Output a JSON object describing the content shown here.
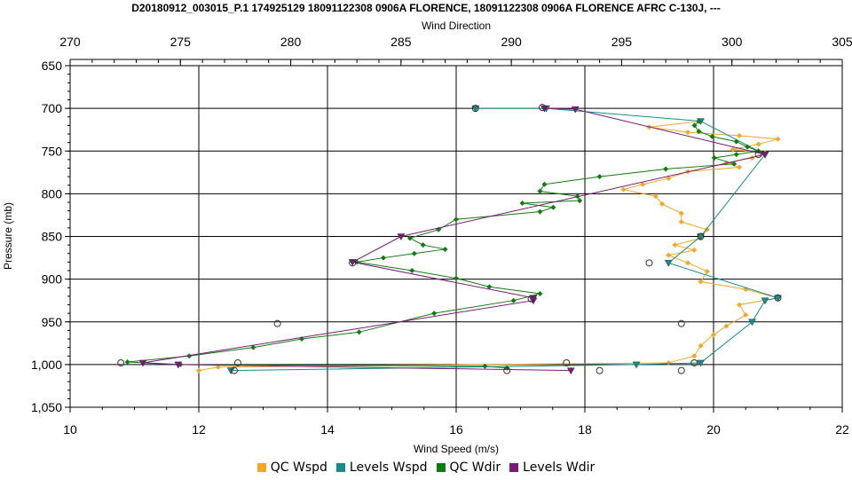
{
  "chart_data": {
    "type": "line",
    "title": "D20180912_003015_P.1 174925129 18091122308 0906A FLORENCE, 18091122308 0906A FLORENCE AFRC C-130J, ---",
    "xlabel": "Wind Speed (m/s)",
    "x2label": "Wind Direction",
    "ylabel": "Pressure (mb)",
    "xlim": [
      10,
      22
    ],
    "x2lim": [
      270,
      305
    ],
    "ylim": [
      650,
      1050
    ],
    "y_inverted": true,
    "grid": true,
    "legend_position": "bottom",
    "x_ticks": [
      "10",
      "12",
      "14",
      "16",
      "18",
      "20",
      "22"
    ],
    "x2_ticks": [
      "270",
      "275",
      "280",
      "285",
      "290",
      "295",
      "300",
      "305"
    ],
    "y_ticks": [
      "650",
      "700",
      "750",
      "800",
      "850",
      "900",
      "950",
      "1,000",
      "1,050"
    ],
    "legend": [
      "QC Wspd",
      "Levels Wspd",
      "QC Wdir",
      "Levels Wdir"
    ],
    "series": [
      {
        "name": "QC Wspd",
        "axis": "x",
        "color": "#f5a623",
        "marker": "diamond",
        "points": [
          [
            19.8,
            715
          ],
          [
            19.0,
            722
          ],
          [
            19.6,
            728
          ],
          [
            20.4,
            732
          ],
          [
            21.0,
            736
          ],
          [
            20.7,
            742
          ],
          [
            20.3,
            748
          ],
          [
            20.8,
            752
          ],
          [
            20.6,
            758
          ],
          [
            20.2,
            764
          ],
          [
            20.4,
            769
          ],
          [
            19.6,
            774
          ],
          [
            19.3,
            782
          ],
          [
            18.9,
            789
          ],
          [
            18.6,
            795
          ],
          [
            19.1,
            803
          ],
          [
            19.2,
            812
          ],
          [
            19.5,
            823
          ],
          [
            19.5,
            833
          ],
          [
            19.9,
            842
          ],
          [
            19.8,
            852
          ],
          [
            19.4,
            860
          ],
          [
            19.7,
            866
          ],
          [
            19.3,
            872
          ],
          [
            19.6,
            881
          ],
          [
            19.9,
            891
          ],
          [
            19.8,
            903
          ],
          [
            20.5,
            912
          ],
          [
            21.0,
            922
          ],
          [
            20.4,
            930
          ],
          [
            20.5,
            942
          ],
          [
            20.2,
            955
          ],
          [
            20.0,
            965
          ],
          [
            19.8,
            978
          ],
          [
            19.7,
            990
          ],
          [
            19.3,
            998
          ],
          [
            12.3,
            1003
          ],
          [
            12.0,
            1007
          ]
        ]
      },
      {
        "name": "Levels Wspd",
        "axis": "x",
        "color": "#138e8c",
        "marker": "triangle",
        "points": [
          [
            16.3,
            700
          ],
          [
            17.4,
            700
          ],
          [
            19.8,
            715
          ],
          [
            20.8,
            754
          ],
          [
            19.8,
            850
          ],
          [
            19.3,
            881
          ],
          [
            21.0,
            922
          ],
          [
            20.8,
            925
          ],
          [
            20.6,
            950
          ],
          [
            19.8,
            998
          ],
          [
            18.8,
            1000
          ],
          [
            12.5,
            1007
          ]
        ]
      },
      {
        "name": "QC Wdir",
        "axis": "x2",
        "color": "#0e7d0e",
        "marker": "diamond",
        "points": [
          [
            298.5,
            715
          ],
          [
            298.3,
            720
          ],
          [
            298.5,
            727
          ],
          [
            299.1,
            733
          ],
          [
            300.2,
            739
          ],
          [
            300.7,
            745
          ],
          [
            301.2,
            750
          ],
          [
            300.2,
            754
          ],
          [
            299.2,
            758
          ],
          [
            300.1,
            765
          ],
          [
            297.0,
            771
          ],
          [
            294.0,
            780
          ],
          [
            291.5,
            789
          ],
          [
            291.3,
            797
          ],
          [
            293.0,
            803
          ],
          [
            293.1,
            808
          ],
          [
            290.5,
            811
          ],
          [
            291.9,
            816
          ],
          [
            291.3,
            821
          ],
          [
            287.5,
            830
          ],
          [
            286.7,
            842
          ],
          [
            285.4,
            852
          ],
          [
            286.0,
            860
          ],
          [
            287.0,
            865
          ],
          [
            285.6,
            870
          ],
          [
            284.2,
            875
          ],
          [
            283.0,
            880
          ],
          [
            285.5,
            890
          ],
          [
            287.5,
            899
          ],
          [
            289.0,
            909
          ],
          [
            291.3,
            917
          ],
          [
            290.1,
            925
          ],
          [
            286.5,
            940
          ],
          [
            283.1,
            962
          ],
          [
            280.5,
            970
          ],
          [
            278.3,
            980
          ],
          [
            275.4,
            990
          ],
          [
            272.6,
            997
          ],
          [
            275.0,
            1000
          ],
          [
            288.8,
            1002
          ],
          [
            289.8,
            1004
          ]
        ]
      },
      {
        "name": "Levels Wdir",
        "axis": "x2",
        "color": "#7b1a7b",
        "marker": "triangle",
        "points": [
          [
            291.5,
            700
          ],
          [
            292.9,
            701
          ],
          [
            301.5,
            754
          ],
          [
            285.0,
            850
          ],
          [
            282.8,
            880
          ],
          [
            291.0,
            922
          ],
          [
            291.0,
            925
          ],
          [
            273.3,
            998
          ],
          [
            274.9,
            1000
          ],
          [
            292.7,
            1007
          ]
        ]
      }
    ],
    "open_markers": [
      {
        "axis": "x",
        "x": 16.3,
        "y": 700
      },
      {
        "axis": "x",
        "x": 19.8,
        "y": 850
      },
      {
        "axis": "x",
        "x": 19.0,
        "y": 881
      },
      {
        "axis": "x",
        "x": 21.0,
        "y": 922
      },
      {
        "axis": "x",
        "x": 19.5,
        "y": 952
      },
      {
        "axis": "x",
        "x": 19.7,
        "y": 998
      },
      {
        "axis": "x",
        "x": 19.5,
        "y": 1007
      },
      {
        "axis": "x",
        "x": 12.55,
        "y": 1007
      },
      {
        "axis": "x2",
        "x": 291.4,
        "y": 699
      },
      {
        "axis": "x2",
        "x": 301.2,
        "y": 754
      },
      {
        "axis": "x2",
        "x": 282.8,
        "y": 881
      },
      {
        "axis": "x2",
        "x": 290.9,
        "y": 923
      },
      {
        "axis": "x2",
        "x": 279.4,
        "y": 952
      },
      {
        "axis": "x2",
        "x": 272.3,
        "y": 998
      },
      {
        "axis": "x2",
        "x": 277.6,
        "y": 998
      },
      {
        "axis": "x2",
        "x": 292.5,
        "y": 998
      },
      {
        "axis": "x2",
        "x": 294.0,
        "y": 1007
      },
      {
        "axis": "x2",
        "x": 289.8,
        "y": 1007
      }
    ]
  }
}
